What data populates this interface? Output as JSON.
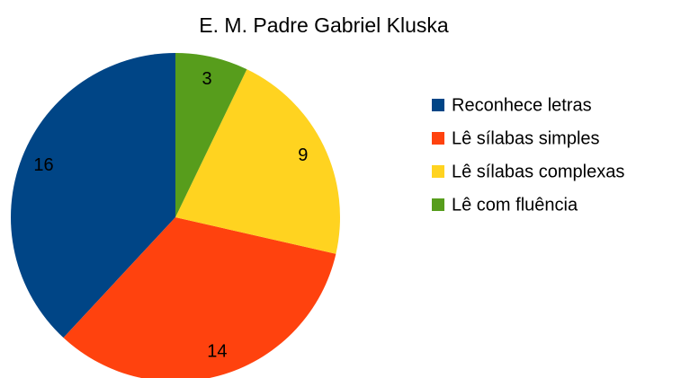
{
  "chart_data": {
    "type": "pie",
    "title": "E. M. Padre Gabriel Kluska",
    "categories": [
      "Reconhece letras",
      "Lê sílabas simples",
      "Lê sílabas complexas",
      "Lê com fluência"
    ],
    "values": [
      16,
      14,
      9,
      3
    ],
    "colors": [
      "#004586",
      "#ff420e",
      "#ffd320",
      "#579d1c"
    ],
    "legend": "right"
  }
}
